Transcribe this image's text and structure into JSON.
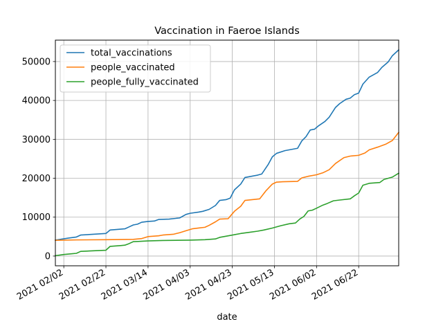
{
  "chart_data": {
    "type": "line",
    "title": "Vaccination in Faeroe Islands",
    "xlabel": "date",
    "ylabel": "",
    "xlim": [
      "2021-01-29",
      "2021-07-11"
    ],
    "ylim": [
      -2500,
      55500
    ],
    "grid": true,
    "legend_position": "top-left",
    "x_ticks": [
      "2021-02-02",
      "2021-02-22",
      "2021-03-14",
      "2021-04-03",
      "2021-04-23",
      "2021-05-13",
      "2021-06-02",
      "2021-06-22"
    ],
    "x_tick_labels": [
      "2021 02/02",
      "2021 02/22",
      "2021 03/14",
      "2021 04/03",
      "2021 04/23",
      "2021 05/13",
      "2021 06/02",
      "2021 06/22"
    ],
    "y_ticks": [
      0,
      10000,
      20000,
      30000,
      40000,
      50000
    ],
    "y_tick_labels": [
      "0",
      "10000",
      "20000",
      "30000",
      "40000",
      "50000"
    ],
    "series": [
      {
        "name": "total_vaccinations",
        "color": "#1f77b4",
        "points": [
          [
            "2021-01-29",
            4100
          ],
          [
            "2021-02-04",
            4600
          ],
          [
            "2021-02-08",
            4900
          ],
          [
            "2021-02-10",
            5400
          ],
          [
            "2021-02-16",
            5600
          ],
          [
            "2021-02-22",
            5800
          ],
          [
            "2021-02-24",
            6700
          ],
          [
            "2021-03-03",
            7000
          ],
          [
            "2021-03-05",
            7500
          ],
          [
            "2021-03-07",
            8000
          ],
          [
            "2021-03-09",
            8200
          ],
          [
            "2021-03-11",
            8700
          ],
          [
            "2021-03-14",
            8900
          ],
          [
            "2021-03-17",
            9000
          ],
          [
            "2021-03-19",
            9400
          ],
          [
            "2021-03-24",
            9500
          ],
          [
            "2021-03-29",
            9800
          ],
          [
            "2021-04-01",
            10700
          ],
          [
            "2021-04-03",
            11000
          ],
          [
            "2021-04-07",
            11300
          ],
          [
            "2021-04-09",
            11500
          ],
          [
            "2021-04-12",
            12000
          ],
          [
            "2021-04-15",
            13000
          ],
          [
            "2021-04-17",
            14300
          ],
          [
            "2021-04-20",
            14500
          ],
          [
            "2021-04-22",
            14900
          ],
          [
            "2021-04-24",
            17000
          ],
          [
            "2021-04-27",
            18500
          ],
          [
            "2021-04-29",
            20200
          ],
          [
            "2021-05-05",
            20800
          ],
          [
            "2021-05-07",
            21100
          ],
          [
            "2021-05-10",
            23500
          ],
          [
            "2021-05-12",
            25500
          ],
          [
            "2021-05-14",
            26400
          ],
          [
            "2021-05-18",
            27100
          ],
          [
            "2021-05-24",
            27700
          ],
          [
            "2021-05-26",
            29600
          ],
          [
            "2021-05-28",
            30700
          ],
          [
            "2021-05-30",
            32400
          ],
          [
            "2021-06-01",
            32600
          ],
          [
            "2021-06-03",
            33500
          ],
          [
            "2021-06-06",
            34600
          ],
          [
            "2021-06-08",
            35700
          ],
          [
            "2021-06-11",
            38200
          ],
          [
            "2021-06-13",
            39200
          ],
          [
            "2021-06-16",
            40300
          ],
          [
            "2021-06-18",
            40600
          ],
          [
            "2021-06-20",
            41500
          ],
          [
            "2021-06-22",
            41900
          ],
          [
            "2021-06-24",
            44200
          ],
          [
            "2021-06-27",
            46000
          ],
          [
            "2021-07-01",
            47200
          ],
          [
            "2021-07-03",
            48500
          ],
          [
            "2021-07-06",
            49900
          ],
          [
            "2021-07-08",
            51500
          ],
          [
            "2021-07-11",
            53000
          ]
        ]
      },
      {
        "name": "people_vaccinated",
        "color": "#ff7f0e",
        "points": [
          [
            "2021-01-29",
            4050
          ],
          [
            "2021-02-08",
            4150
          ],
          [
            "2021-02-22",
            4200
          ],
          [
            "2021-03-07",
            4300
          ],
          [
            "2021-03-11",
            4500
          ],
          [
            "2021-03-14",
            5000
          ],
          [
            "2021-03-19",
            5200
          ],
          [
            "2021-03-21",
            5400
          ],
          [
            "2021-03-26",
            5600
          ],
          [
            "2021-03-29",
            6000
          ],
          [
            "2021-04-01",
            6500
          ],
          [
            "2021-04-04",
            7000
          ],
          [
            "2021-04-07",
            7200
          ],
          [
            "2021-04-10",
            7400
          ],
          [
            "2021-04-12",
            7900
          ],
          [
            "2021-04-15",
            8800
          ],
          [
            "2021-04-17",
            9500
          ],
          [
            "2021-04-21",
            9600
          ],
          [
            "2021-04-24",
            11500
          ],
          [
            "2021-04-27",
            12800
          ],
          [
            "2021-04-29",
            14300
          ],
          [
            "2021-05-06",
            14700
          ],
          [
            "2021-05-09",
            16800
          ],
          [
            "2021-05-12",
            18500
          ],
          [
            "2021-05-14",
            19000
          ],
          [
            "2021-05-17",
            19100
          ],
          [
            "2021-05-24",
            19200
          ],
          [
            "2021-05-26",
            20100
          ],
          [
            "2021-05-29",
            20500
          ],
          [
            "2021-06-02",
            20900
          ],
          [
            "2021-06-05",
            21400
          ],
          [
            "2021-06-08",
            22200
          ],
          [
            "2021-06-11",
            23800
          ],
          [
            "2021-06-15",
            25300
          ],
          [
            "2021-06-18",
            25700
          ],
          [
            "2021-06-22",
            25900
          ],
          [
            "2021-06-25",
            26500
          ],
          [
            "2021-06-27",
            27300
          ],
          [
            "2021-07-01",
            28000
          ],
          [
            "2021-07-05",
            28800
          ],
          [
            "2021-07-08",
            29700
          ],
          [
            "2021-07-11",
            31800
          ]
        ]
      },
      {
        "name": "people_fully_vaccinated",
        "color": "#2ca02c",
        "points": [
          [
            "2021-01-29",
            100
          ],
          [
            "2021-02-02",
            400
          ],
          [
            "2021-02-06",
            600
          ],
          [
            "2021-02-08",
            700
          ],
          [
            "2021-02-10",
            1200
          ],
          [
            "2021-02-18",
            1400
          ],
          [
            "2021-02-22",
            1500
          ],
          [
            "2021-02-24",
            2500
          ],
          [
            "2021-03-01",
            2700
          ],
          [
            "2021-03-03",
            2800
          ],
          [
            "2021-03-05",
            3200
          ],
          [
            "2021-03-07",
            3700
          ],
          [
            "2021-03-14",
            3900
          ],
          [
            "2021-03-21",
            4000
          ],
          [
            "2021-04-03",
            4100
          ],
          [
            "2021-04-10",
            4200
          ],
          [
            "2021-04-15",
            4400
          ],
          [
            "2021-04-17",
            4800
          ],
          [
            "2021-04-22",
            5300
          ],
          [
            "2021-04-24",
            5500
          ],
          [
            "2021-04-27",
            5800
          ],
          [
            "2021-05-01",
            6100
          ],
          [
            "2021-05-05",
            6400
          ],
          [
            "2021-05-08",
            6700
          ],
          [
            "2021-05-12",
            7200
          ],
          [
            "2021-05-16",
            7800
          ],
          [
            "2021-05-20",
            8300
          ],
          [
            "2021-05-23",
            8500
          ],
          [
            "2021-05-25",
            9500
          ],
          [
            "2021-05-27",
            10200
          ],
          [
            "2021-05-29",
            11600
          ],
          [
            "2021-05-31",
            11800
          ],
          [
            "2021-06-02",
            12300
          ],
          [
            "2021-06-05",
            13100
          ],
          [
            "2021-06-07",
            13500
          ],
          [
            "2021-06-10",
            14200
          ],
          [
            "2021-06-13",
            14400
          ],
          [
            "2021-06-18",
            14700
          ],
          [
            "2021-06-20",
            15500
          ],
          [
            "2021-06-22",
            16200
          ],
          [
            "2021-06-24",
            18200
          ],
          [
            "2021-06-27",
            18700
          ],
          [
            "2021-07-02",
            18900
          ],
          [
            "2021-07-04",
            19700
          ],
          [
            "2021-07-08",
            20300
          ],
          [
            "2021-07-11",
            21300
          ]
        ]
      }
    ]
  }
}
